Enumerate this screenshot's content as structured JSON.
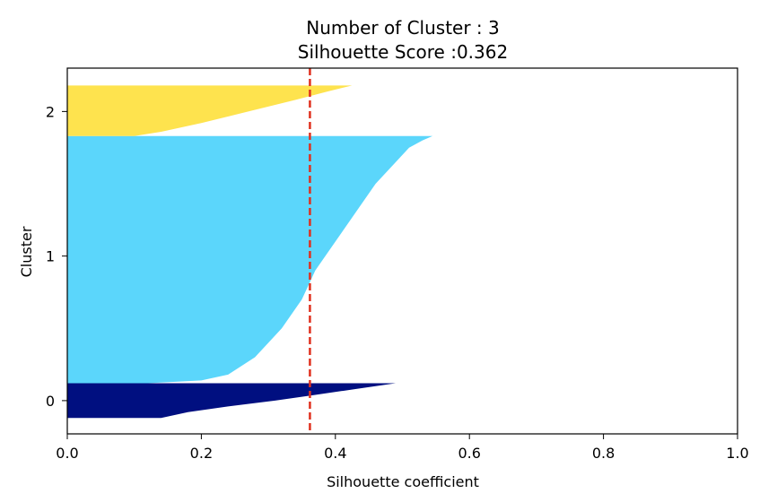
{
  "chart_data": {
    "type": "silhouette",
    "title": "Number of Cluster : 3",
    "subtitle": "Silhouette Score :0.362",
    "xlabel": "Silhouette coefficient",
    "ylabel": "Cluster",
    "xlim": [
      0.0,
      1.0
    ],
    "ylim": [
      -0.23,
      2.3
    ],
    "xticks": [
      "0.0",
      "0.2",
      "0.4",
      "0.6",
      "0.8",
      "1.0"
    ],
    "yticks": [
      "0",
      "1",
      "2"
    ],
    "silhouette_score": 0.362,
    "grid": false,
    "clusters": [
      {
        "label": "0",
        "color": "#000f80",
        "y_range": [
          -0.12,
          0.12
        ],
        "profile": [
          [
            -0.12,
            0.14
          ],
          [
            -0.08,
            0.18
          ],
          [
            -0.04,
            0.24
          ],
          [
            0.0,
            0.31
          ],
          [
            0.04,
            0.37
          ],
          [
            0.08,
            0.43
          ],
          [
            0.12,
            0.49
          ]
        ]
      },
      {
        "label": "1",
        "color": "#5bd6fb",
        "y_range": [
          0.12,
          1.83
        ],
        "profile": [
          [
            0.12,
            0.12
          ],
          [
            0.14,
            0.2
          ],
          [
            0.18,
            0.24
          ],
          [
            0.3,
            0.28
          ],
          [
            0.5,
            0.32
          ],
          [
            0.7,
            0.35
          ],
          [
            0.9,
            0.37
          ],
          [
            1.1,
            0.4
          ],
          [
            1.3,
            0.43
          ],
          [
            1.5,
            0.46
          ],
          [
            1.65,
            0.49
          ],
          [
            1.75,
            0.51
          ],
          [
            1.8,
            0.53
          ],
          [
            1.83,
            0.545
          ]
        ]
      },
      {
        "label": "2",
        "color": "#fee34e",
        "y_range": [
          1.83,
          2.18
        ],
        "profile": [
          [
            1.83,
            0.1
          ],
          [
            1.86,
            0.14
          ],
          [
            1.92,
            0.2
          ],
          [
            2.0,
            0.27
          ],
          [
            2.08,
            0.34
          ],
          [
            2.14,
            0.39
          ],
          [
            2.18,
            0.425
          ]
        ]
      }
    ],
    "avg_line": {
      "value": 0.362,
      "color": "#e0301e",
      "style": "dashed"
    }
  }
}
